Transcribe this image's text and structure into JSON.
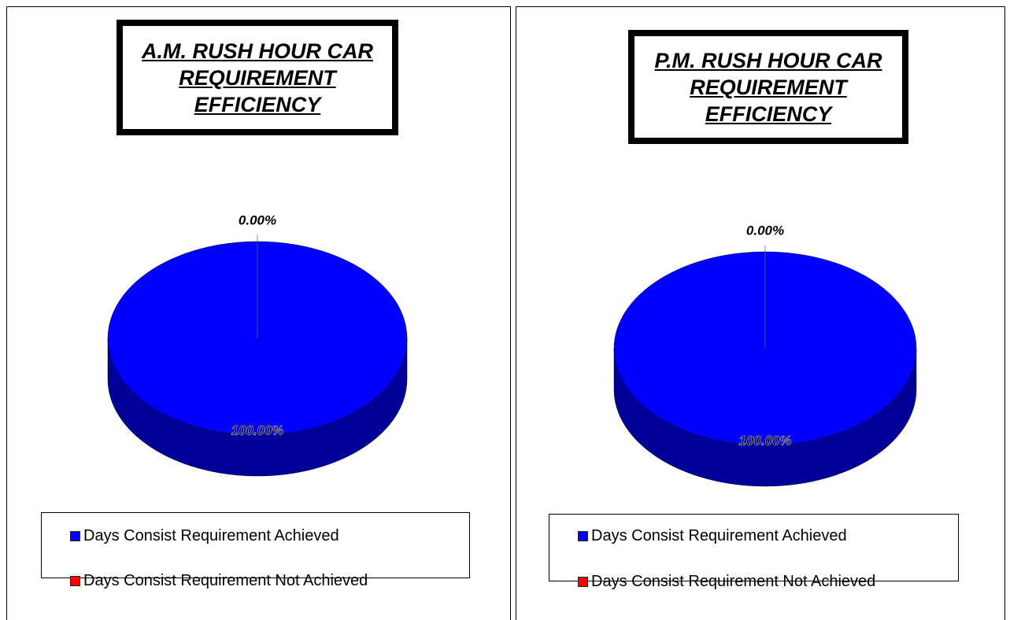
{
  "chart_data": [
    {
      "type": "pie",
      "title": "A.M. RUSH HOUR CAR REQUIREMENT EFFICIENCY",
      "categories": [
        "Days Consist Requirement Achieved",
        "Days Consist Requirement Not Achieved"
      ],
      "values": [
        100,
        0
      ],
      "value_labels": [
        "100.00%",
        "0.00%"
      ],
      "colors": [
        "#0000ff",
        "#ff0000"
      ],
      "legend": "bottom"
    },
    {
      "type": "pie",
      "title": "P.M. RUSH HOUR CAR REQUIREMENT EFFICIENCY",
      "categories": [
        "Days Consist Requirement Achieved",
        "Days Consist Requirement Not Achieved"
      ],
      "values": [
        100,
        0
      ],
      "value_labels": [
        "100.00%",
        "0.00%"
      ],
      "colors": [
        "#0000ff",
        "#ff0000"
      ],
      "legend": "bottom"
    }
  ]
}
